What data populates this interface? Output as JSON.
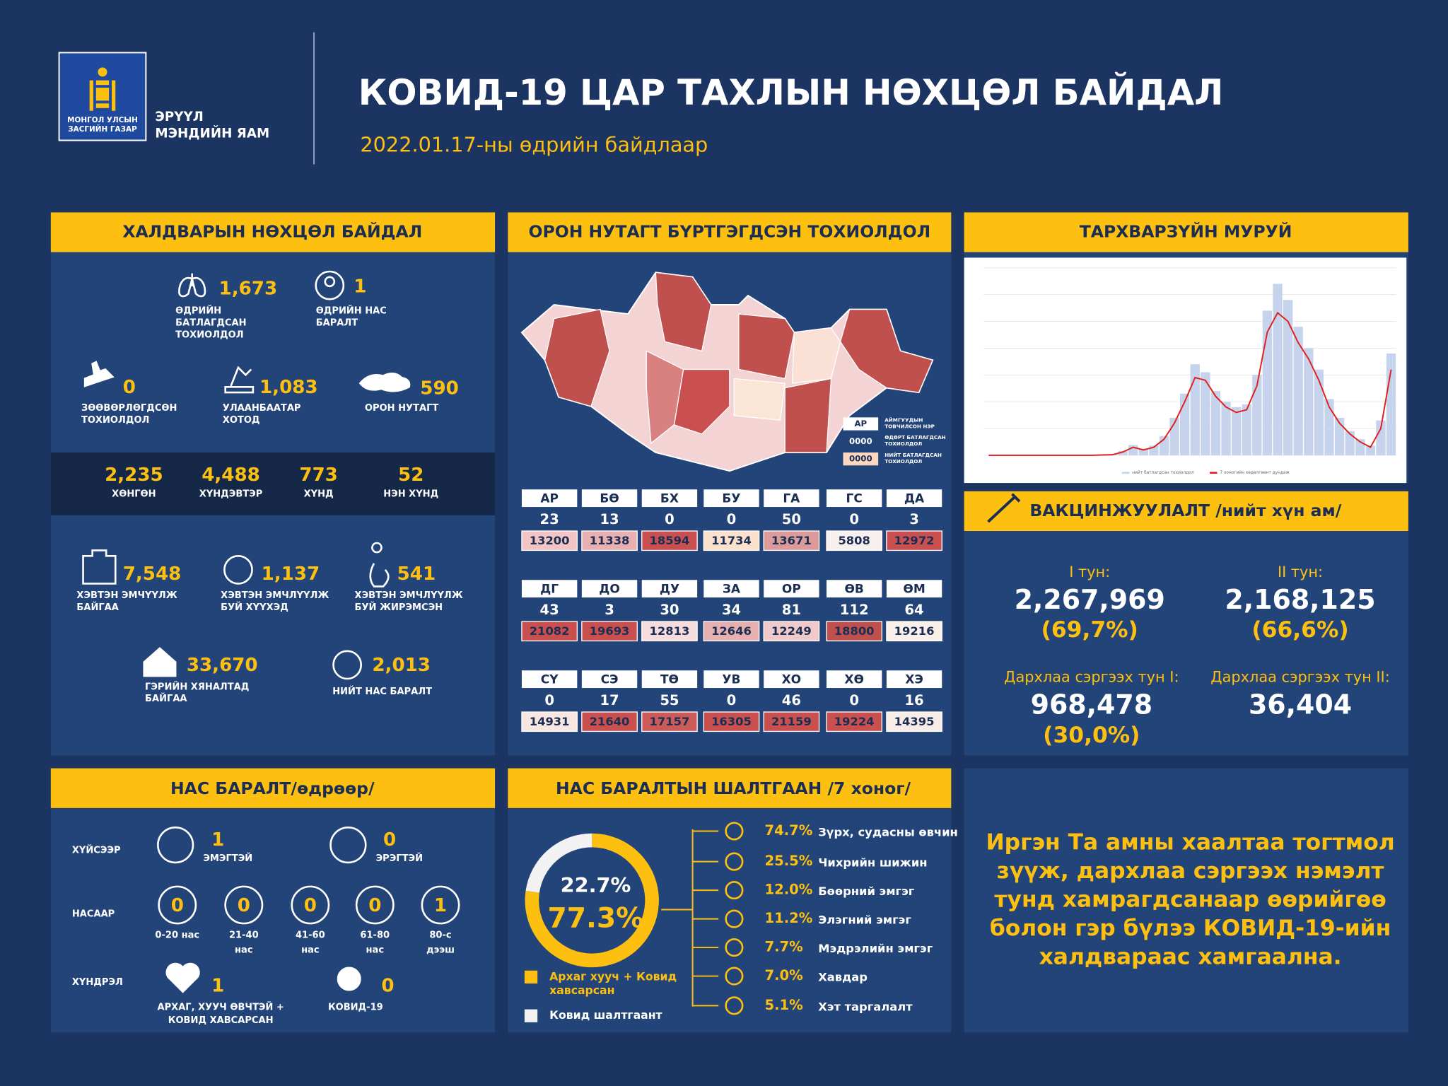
{
  "header": {
    "logo_text": [
      "МОНГОЛ УЛСЫН",
      "ЗАСГИЙН ГАЗАР"
    ],
    "ministry": [
      "ЭРҮҮЛ",
      "МЭНДИЙН ЯАМ"
    ],
    "title": "КОВИД-19 ЦАР ТАХЛЫН НӨХЦӨЛ БАЙДАЛ",
    "date": "2022.01.17-ны өдрийн байдлаар"
  },
  "infection": {
    "title": "ХАЛДВАРЫН НӨХЦӨЛ БАЙДАЛ",
    "stats": [
      {
        "value": "1,673",
        "label": [
          "ӨДРИЙН",
          "БАТЛАГДСАН",
          "ТОХИОЛДОЛ"
        ]
      },
      {
        "value": "1",
        "label": [
          "ӨДРИЙН НАС",
          "БАРАЛТ"
        ]
      },
      {
        "value": "0",
        "label": [
          "ЗӨӨВӨРЛӨГДСӨН",
          "ТОХИОЛДОЛ"
        ]
      },
      {
        "value": "1,083",
        "label": [
          "УЛААНБААТАР",
          "ХОТОД"
        ]
      },
      {
        "value": "590",
        "label": [
          "ОРОН НУТАГТ"
        ]
      }
    ],
    "severity": [
      {
        "value": "2,235",
        "label": "ХӨНГӨН"
      },
      {
        "value": "4,488",
        "label": "ХҮНДЭВТЭР"
      },
      {
        "value": "773",
        "label": "ХҮНД"
      },
      {
        "value": "52",
        "label": "НЭН ХҮНД"
      }
    ],
    "care": [
      {
        "value": "7,548",
        "label": [
          "ХЭВТЭН ЭМЧҮҮЛЖ",
          "БАЙГАА"
        ]
      },
      {
        "value": "1,137",
        "label": [
          "ХЭВТЭН ЭМЧЛҮҮЛЖ",
          "БУЙ ХҮҮХЭД"
        ]
      },
      {
        "value": "541",
        "label": [
          "ХЭВТЭН ЭМЧЛҮҮЛЖ",
          "БУЙ ЖИРЭМСЭН"
        ]
      },
      {
        "value": "33,670",
        "label": [
          "ГЭРИЙН ХЯНАЛТАД",
          "БАЙГАА"
        ]
      },
      {
        "value": "2,013",
        "label": [
          "НИЙТ НАС БАРАЛТ"
        ]
      }
    ]
  },
  "regions": {
    "title": "ОРОН НУТАГТ БҮРТГЭГДСЭН ТОХИОЛДОЛ",
    "legend": [
      {
        "sample": "АР",
        "label": [
          "АЙМГУУДЫН",
          "ТОВЧИЛСОН НЭР"
        ]
      },
      {
        "sample": "0000",
        "label": [
          "ӨДӨРТ БАТЛАГДСАН",
          "ТОХИОЛДОЛ"
        ]
      },
      {
        "sample": "0000",
        "label": [
          "НИЙТ БАТЛАГДСАН",
          "ТОХИОЛДОЛ"
        ]
      }
    ],
    "provinces": [
      {
        "code": "АР",
        "daily": "23",
        "total": "13200",
        "color": "#f2c4c4"
      },
      {
        "code": "БӨ",
        "daily": "13",
        "total": "11338",
        "color": "#e8b0b0"
      },
      {
        "code": "БХ",
        "daily": "0",
        "total": "18594",
        "color": "#c9504f"
      },
      {
        "code": "БУ",
        "daily": "0",
        "total": "11734",
        "color": "#fbe0cc"
      },
      {
        "code": "ГА",
        "daily": "50",
        "total": "13671",
        "color": "#dc9a9a"
      },
      {
        "code": "ГС",
        "daily": "0",
        "total": "5808",
        "color": "#f8f0ee"
      },
      {
        "code": "ДА",
        "daily": "3",
        "total": "12972",
        "color": "#c9504f"
      },
      {
        "code": "ДГ",
        "daily": "43",
        "total": "21082",
        "color": "#c9504f"
      },
      {
        "code": "ДО",
        "daily": "3",
        "total": "19693",
        "color": "#c9504f"
      },
      {
        "code": "ДУ",
        "daily": "30",
        "total": "12813",
        "color": "#f6dcdc"
      },
      {
        "code": "ЗА",
        "daily": "34",
        "total": "12646",
        "color": "#e6b0b0"
      },
      {
        "code": "ОР",
        "daily": "81",
        "total": "12249",
        "color": "#f0caca"
      },
      {
        "code": "ӨВ",
        "daily": "112",
        "total": "18800",
        "color": "#c0504d"
      },
      {
        "code": "ӨМ",
        "daily": "64",
        "total": "19216",
        "color": "#fbefea"
      },
      {
        "code": "СҮ",
        "daily": "0",
        "total": "14931",
        "color": "#f8e6e0"
      },
      {
        "code": "СЭ",
        "daily": "17",
        "total": "21640",
        "color": "#c9504f"
      },
      {
        "code": "ТӨ",
        "daily": "55",
        "total": "17157",
        "color": "#cc5a58"
      },
      {
        "code": "УВ",
        "daily": "0",
        "total": "16305",
        "color": "#c9504f"
      },
      {
        "code": "ХО",
        "daily": "46",
        "total": "21159",
        "color": "#c9504f"
      },
      {
        "code": "ХӨ",
        "daily": "0",
        "total": "19224",
        "color": "#c9504f"
      },
      {
        "code": "ХЭ",
        "daily": "16",
        "total": "14395",
        "color": "#f8ece6"
      }
    ]
  },
  "chart_data": {
    "type": "line",
    "title": "ТАРХВАРЗҮЙН МУРУЙ",
    "categories": [
      null,
      null,
      null,
      null,
      null,
      null,
      null,
      null,
      null,
      null,
      null,
      null,
      null,
      null,
      null,
      null,
      null,
      null,
      null,
      null,
      null,
      null,
      null,
      null,
      null,
      null,
      null,
      null,
      null,
      null,
      null,
      null,
      null,
      null,
      null,
      null,
      null,
      null,
      null,
      null
    ],
    "ylim": [
      0,
      3500
    ],
    "series": [
      {
        "name": "нийт батлагдсан тохиолдол",
        "type": "bar",
        "color": "#c5d3ec",
        "values": [
          0,
          0,
          0,
          0,
          0,
          0,
          0,
          0,
          0,
          0,
          0,
          8,
          15,
          80,
          190,
          120,
          180,
          360,
          700,
          1150,
          1700,
          1550,
          1200,
          1000,
          900,
          950,
          1500,
          2700,
          3200,
          2900,
          2400,
          2000,
          1600,
          1050,
          700,
          450,
          300,
          180,
          650,
          1900
        ]
      },
      {
        "name": "7 хоногийн хөдөлгөөнт дундаж",
        "type": "line",
        "color": "#e0201b",
        "values": [
          0,
          0,
          0,
          0,
          0,
          0,
          0,
          0,
          0,
          0,
          0,
          5,
          10,
          60,
          150,
          100,
          150,
          300,
          600,
          1000,
          1450,
          1400,
          1100,
          900,
          800,
          850,
          1300,
          2300,
          2660,
          2500,
          2100,
          1800,
          1400,
          900,
          600,
          400,
          250,
          150,
          500,
          1600
        ]
      }
    ]
  },
  "vaccination": {
    "title": "ВАКЦИНЖУУЛАЛТ /нийт хүн ам/",
    "items": [
      {
        "label": "I тун:",
        "value": "2,267,969",
        "percent": "(69,7%)"
      },
      {
        "label": "II тун:",
        "value": "2,168,125",
        "percent": "(66,6%)"
      },
      {
        "label": "Дархлаа сэргээх тун I:",
        "value": "968,478",
        "percent": "(30,0%)"
      },
      {
        "label": "Дархлаа сэргээх тун II:",
        "value": "36,404"
      }
    ]
  },
  "deaths": {
    "title": "НАС БАРАЛТ/өдрөөр/",
    "gender": {
      "label": "ХҮЙСЭЭР",
      "items": [
        {
          "value": "1",
          "label": "ЭМЭГТЭЙ"
        },
        {
          "value": "0",
          "label": "ЭРЭГТЭЙ"
        }
      ]
    },
    "age": {
      "label": "НАСААР",
      "items": [
        {
          "value": "0",
          "label": [
            "0-20 нас"
          ]
        },
        {
          "value": "0",
          "label": [
            "21-40",
            "нас"
          ]
        },
        {
          "value": "0",
          "label": [
            "41-60",
            "нас"
          ]
        },
        {
          "value": "0",
          "label": [
            "61-80",
            "нас"
          ]
        },
        {
          "value": "1",
          "label": [
            "80-с",
            "дээш"
          ]
        }
      ]
    },
    "complication": {
      "label": "ХҮНДРЭЛ",
      "items": [
        {
          "value": "1",
          "label": [
            "АРХАГ, ХУУЧ ӨВЧТЭЙ +",
            "КОВИД ХАВСАРСАН"
          ]
        },
        {
          "value": "0",
          "label": [
            "КОВИД-19"
          ]
        }
      ]
    }
  },
  "causes": {
    "title": "НАС БАРАЛТЫН ШАЛТГААН /7 хоног/",
    "donut": {
      "names": [
        [
          "Архаг хууч + Ковид",
          "хавсарсан"
        ],
        [
          "Ковид шалтгаант"
        ]
      ],
      "values": [
        77.3,
        22.7
      ],
      "value_labels": [
        "77.3%",
        "22.7%"
      ],
      "colors": [
        "#fdc010",
        "#f2f2f2"
      ]
    },
    "items": [
      {
        "percent": "74.7%",
        "name": "Зүрх, судасны өвчин"
      },
      {
        "percent": "25.5%",
        "name": "Чихрийн шижин"
      },
      {
        "percent": "12.0%",
        "name": "Бөөрний эмгэг"
      },
      {
        "percent": "11.2%",
        "name": "Элэгний эмгэг"
      },
      {
        "percent": "7.7%",
        "name": "Мэдрэлийн эмгэг"
      },
      {
        "percent": "7.0%",
        "name": "Хавдар"
      },
      {
        "percent": "5.1%",
        "name": "Хэт таргалалт"
      }
    ]
  },
  "message": [
    "Иргэн Та амны хаалтаа тогтмол",
    "зүүж, дархлаа сэргээх нэмэлт",
    "тунд хамрагдсанаар өөрийгөө",
    "болон гэр бүлээ КОВИД-19-ийн",
    "халдвараас хамгаална."
  ]
}
